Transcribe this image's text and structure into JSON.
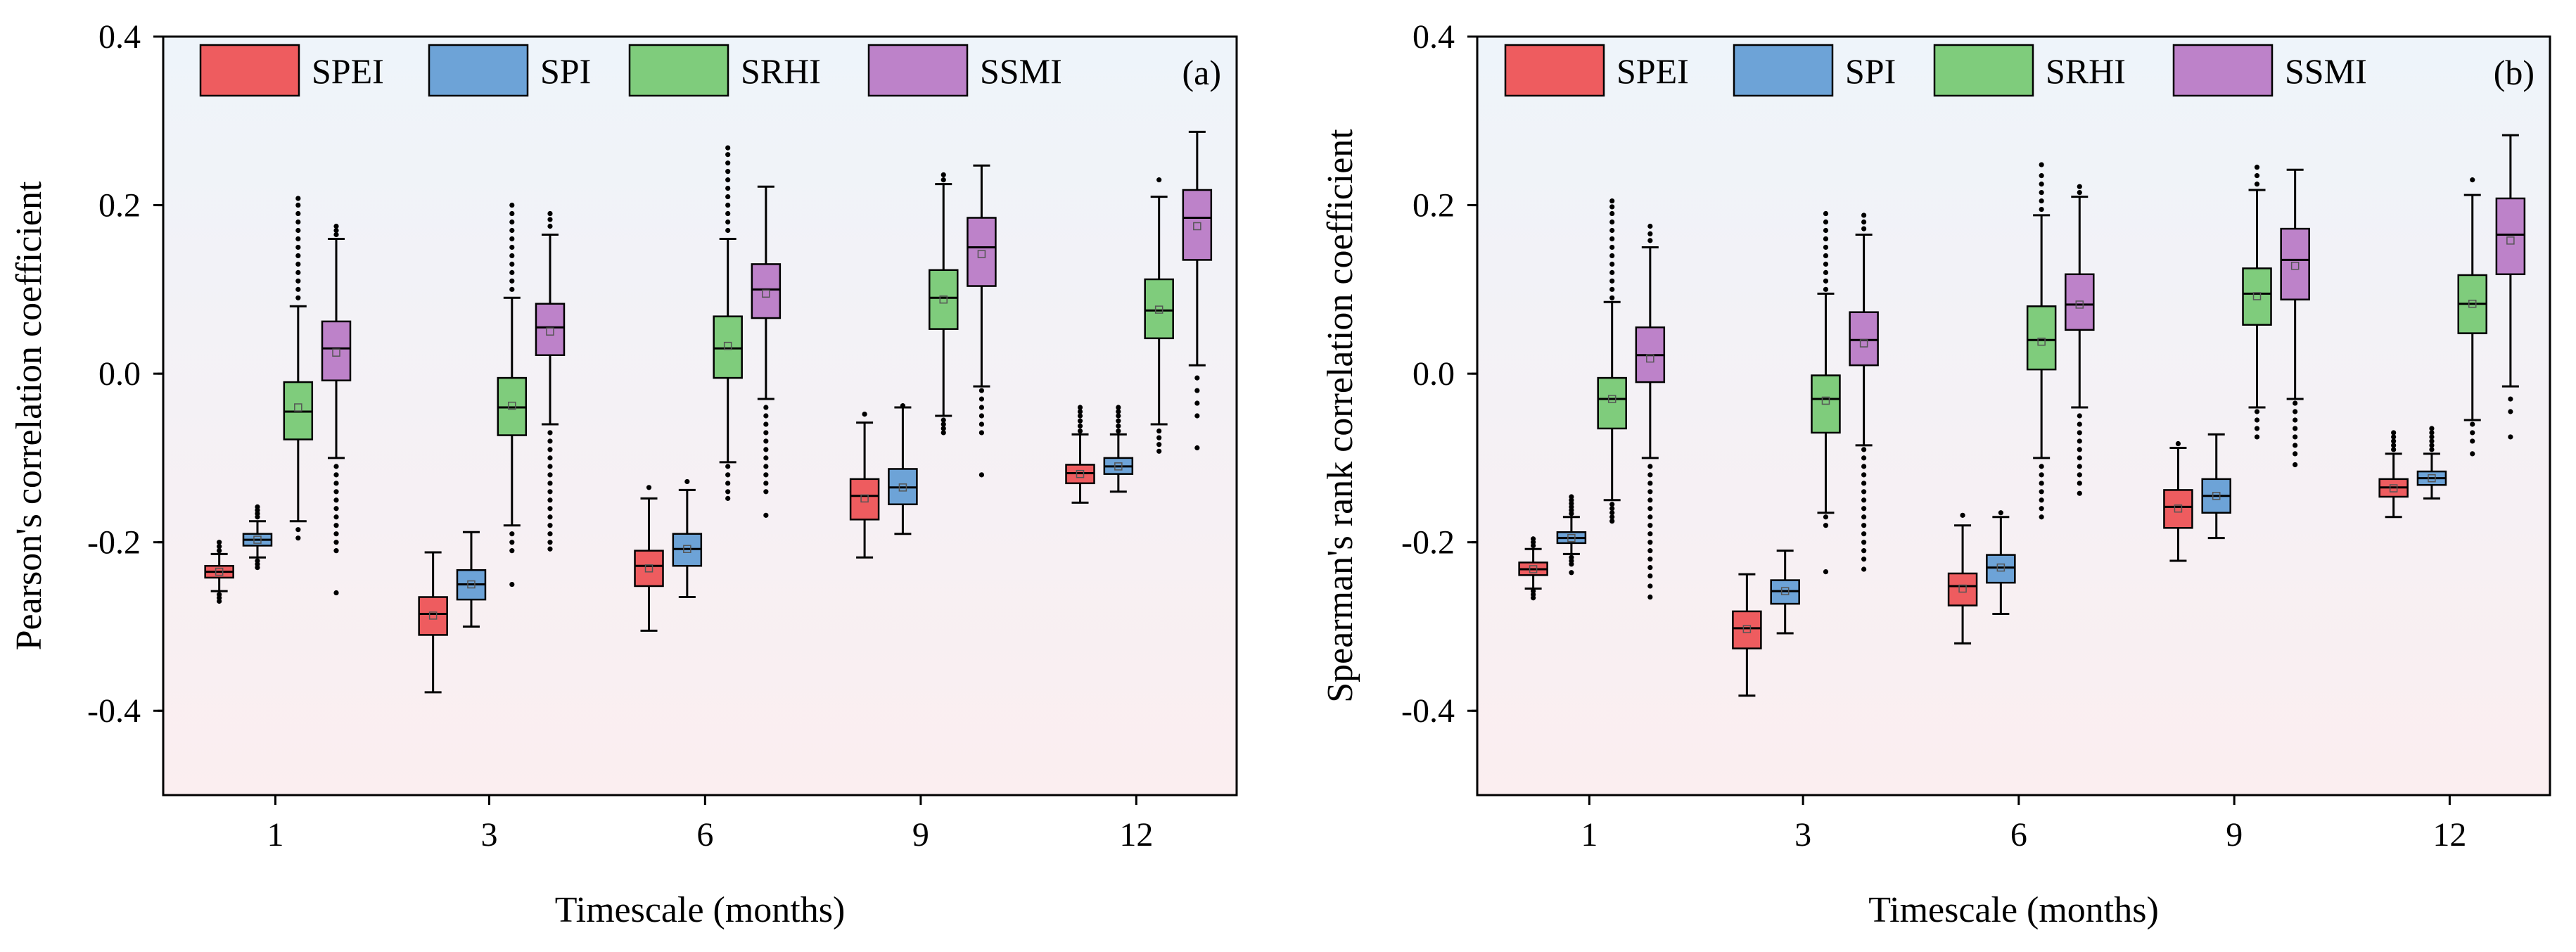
{
  "colors": {
    "SPEI": "#ee5c5f",
    "SPI": "#6da3d7",
    "SRHI": "#7fcc7c",
    "SSMI": "#bd82c9",
    "bg_top": "#eef4fa",
    "bg_bottom": "#fbeef0"
  },
  "chart_data": [
    {
      "type": "box",
      "panel_label": "(a)",
      "title": "",
      "xlabel": "Timescale (months)",
      "ylabel": "Pearson's correlation coefficient",
      "ylim": [
        -0.5,
        0.4
      ],
      "yticks": [
        "0.4",
        "0.2",
        "0.0",
        "-0.2",
        "-0.4"
      ],
      "ytick_values": [
        0.4,
        0.2,
        0.0,
        -0.2,
        -0.4
      ],
      "categories": [
        "1",
        "3",
        "6",
        "9",
        "12"
      ],
      "legend": [
        "SPEI",
        "SPI",
        "SRHI",
        "SSMI"
      ],
      "legend_position": "top",
      "series": [
        {
          "name": "SPEI",
          "boxes": [
            {
              "wlo": -0.258,
              "q1": -0.242,
              "median": -0.235,
              "q3": -0.228,
              "whi": -0.214,
              "mean": -0.235,
              "out_lo": [
                -0.262,
                -0.266,
                -0.27
              ],
              "out_hi": [
                -0.21,
                -0.205,
                -0.2
              ]
            },
            {
              "wlo": -0.378,
              "q1": -0.31,
              "median": -0.285,
              "q3": -0.265,
              "whi": -0.212,
              "mean": -0.287,
              "out_lo": [],
              "out_hi": []
            },
            {
              "wlo": -0.305,
              "q1": -0.252,
              "median": -0.228,
              "q3": -0.21,
              "whi": -0.148,
              "mean": -0.231,
              "out_lo": [],
              "out_hi": [
                -0.135
              ]
            },
            {
              "wlo": -0.218,
              "q1": -0.173,
              "median": -0.145,
              "q3": -0.125,
              "whi": -0.058,
              "mean": -0.148,
              "out_lo": [],
              "out_hi": [
                -0.048
              ]
            },
            {
              "wlo": -0.153,
              "q1": -0.13,
              "median": -0.118,
              "q3": -0.108,
              "whi": -0.072,
              "mean": -0.119,
              "out_lo": [],
              "out_hi": [
                -0.068,
                -0.062,
                -0.056,
                -0.05,
                -0.045,
                -0.04
              ]
            }
          ]
        },
        {
          "name": "SPI",
          "boxes": [
            {
              "wlo": -0.218,
              "q1": -0.204,
              "median": -0.197,
              "q3": -0.19,
              "whi": -0.175,
              "mean": -0.197,
              "out_lo": [
                -0.222,
                -0.226,
                -0.23
              ],
              "out_hi": [
                -0.17,
                -0.166,
                -0.162,
                -0.158
              ]
            },
            {
              "wlo": -0.3,
              "q1": -0.268,
              "median": -0.25,
              "q3": -0.233,
              "whi": -0.188,
              "mean": -0.25,
              "out_lo": [],
              "out_hi": []
            },
            {
              "wlo": -0.265,
              "q1": -0.228,
              "median": -0.208,
              "q3": -0.19,
              "whi": -0.138,
              "mean": -0.208,
              "out_lo": [],
              "out_hi": [
                -0.128
              ]
            },
            {
              "wlo": -0.19,
              "q1": -0.155,
              "median": -0.135,
              "q3": -0.113,
              "whi": -0.04,
              "mean": -0.135,
              "out_lo": [],
              "out_hi": [
                -0.038
              ]
            },
            {
              "wlo": -0.14,
              "q1": -0.119,
              "median": -0.11,
              "q3": -0.1,
              "whi": -0.072,
              "mean": -0.11,
              "out_lo": [],
              "out_hi": [
                -0.068,
                -0.062,
                -0.056,
                -0.05,
                -0.045,
                -0.04
              ]
            }
          ]
        },
        {
          "name": "SRHI",
          "boxes": [
            {
              "wlo": -0.175,
              "q1": -0.078,
              "median": -0.045,
              "q3": -0.01,
              "whi": 0.08,
              "mean": -0.04,
              "out_lo": [
                -0.185,
                -0.195
              ],
              "out_hi": [
                0.09,
                0.1,
                0.11,
                0.12,
                0.13,
                0.14,
                0.15,
                0.16,
                0.17,
                0.18,
                0.19,
                0.2,
                0.208
              ]
            },
            {
              "wlo": -0.18,
              "q1": -0.073,
              "median": -0.04,
              "q3": -0.005,
              "whi": 0.09,
              "mean": -0.038,
              "out_lo": [
                -0.19,
                -0.2,
                -0.21,
                -0.25
              ],
              "out_hi": [
                0.1,
                0.11,
                0.12,
                0.13,
                0.14,
                0.15,
                0.16,
                0.17,
                0.18,
                0.19,
                0.2
              ]
            },
            {
              "wlo": -0.105,
              "q1": -0.005,
              "median": 0.03,
              "q3": 0.068,
              "whi": 0.16,
              "mean": 0.033,
              "out_lo": [
                -0.11,
                -0.12,
                -0.13,
                -0.14,
                -0.148
              ],
              "out_hi": [
                0.17,
                0.18,
                0.19,
                0.2,
                0.21,
                0.22,
                0.23,
                0.24,
                0.25,
                0.26,
                0.268
              ]
            },
            {
              "wlo": -0.05,
              "q1": 0.053,
              "median": 0.09,
              "q3": 0.123,
              "whi": 0.225,
              "mean": 0.088,
              "out_lo": [
                -0.055,
                -0.06,
                -0.065,
                -0.07
              ],
              "out_hi": [
                0.23,
                0.236
              ]
            },
            {
              "wlo": -0.06,
              "q1": 0.042,
              "median": 0.075,
              "q3": 0.112,
              "whi": 0.21,
              "mean": 0.076,
              "out_lo": [
                -0.068,
                -0.076,
                -0.084,
                -0.092
              ],
              "out_hi": [
                0.23
              ]
            }
          ]
        },
        {
          "name": "SSMI",
          "boxes": [
            {
              "wlo": -0.1,
              "q1": -0.008,
              "median": 0.03,
              "q3": 0.062,
              "whi": 0.16,
              "mean": 0.025,
              "out_lo": [
                -0.11,
                -0.12,
                -0.13,
                -0.14,
                -0.15,
                -0.16,
                -0.17,
                -0.18,
                -0.19,
                -0.2,
                -0.21,
                -0.26
              ],
              "out_hi": [
                0.165,
                0.17,
                0.175
              ]
            },
            {
              "wlo": -0.06,
              "q1": 0.022,
              "median": 0.055,
              "q3": 0.083,
              "whi": 0.165,
              "mean": 0.05,
              "out_lo": [
                -0.07,
                -0.08,
                -0.09,
                -0.1,
                -0.11,
                -0.12,
                -0.13,
                -0.14,
                -0.15,
                -0.16,
                -0.17,
                -0.18,
                -0.19,
                -0.2,
                -0.208
              ],
              "out_hi": [
                0.175,
                0.183,
                0.19
              ]
            },
            {
              "wlo": -0.03,
              "q1": 0.066,
              "median": 0.1,
              "q3": 0.13,
              "whi": 0.222,
              "mean": 0.095,
              "out_lo": [
                -0.04,
                -0.05,
                -0.06,
                -0.07,
                -0.08,
                -0.09,
                -0.1,
                -0.11,
                -0.12,
                -0.13,
                -0.14,
                -0.168
              ],
              "out_hi": []
            },
            {
              "wlo": -0.015,
              "q1": 0.104,
              "median": 0.15,
              "q3": 0.185,
              "whi": 0.247,
              "mean": 0.142,
              "out_lo": [
                -0.02,
                -0.03,
                -0.04,
                -0.05,
                -0.06,
                -0.07,
                -0.12
              ],
              "out_hi": []
            },
            {
              "wlo": 0.01,
              "q1": 0.135,
              "median": 0.185,
              "q3": 0.218,
              "whi": 0.287,
              "mean": 0.175,
              "out_lo": [
                -0.005,
                -0.02,
                -0.035,
                -0.05,
                -0.088
              ],
              "out_hi": []
            }
          ]
        }
      ]
    },
    {
      "type": "box",
      "panel_label": "(b)",
      "title": "",
      "xlabel": "Timescale (months)",
      "ylabel": "Spearman's rank correlation coefficient",
      "ylim": [
        -0.5,
        0.4
      ],
      "yticks": [
        "0.4",
        "0.2",
        "0.0",
        "-0.2",
        "-0.4"
      ],
      "ytick_values": [
        0.4,
        0.2,
        0.0,
        -0.2,
        -0.4
      ],
      "categories": [
        "1",
        "3",
        "6",
        "9",
        "12"
      ],
      "legend": [
        "SPEI",
        "SPI",
        "SRHI",
        "SSMI"
      ],
      "legend_position": "top",
      "series": [
        {
          "name": "SPEI",
          "boxes": [
            {
              "wlo": -0.255,
              "q1": -0.239,
              "median": -0.232,
              "q3": -0.224,
              "whi": -0.208,
              "mean": -0.232,
              "out_lo": [
                -0.258,
                -0.262,
                -0.266
              ],
              "out_hi": [
                -0.204,
                -0.2,
                -0.196
              ]
            },
            {
              "wlo": -0.382,
              "q1": -0.326,
              "median": -0.302,
              "q3": -0.282,
              "whi": -0.238,
              "mean": -0.303,
              "out_lo": [],
              "out_hi": []
            },
            {
              "wlo": -0.32,
              "q1": -0.275,
              "median": -0.252,
              "q3": -0.237,
              "whi": -0.18,
              "mean": -0.255,
              "out_lo": [],
              "out_hi": [
                -0.168
              ]
            },
            {
              "wlo": -0.222,
              "q1": -0.183,
              "median": -0.158,
              "q3": -0.138,
              "whi": -0.088,
              "mean": -0.16,
              "out_lo": [],
              "out_hi": [
                -0.083
              ]
            },
            {
              "wlo": -0.17,
              "q1": -0.146,
              "median": -0.135,
              "q3": -0.125,
              "whi": -0.095,
              "mean": -0.136,
              "out_lo": [],
              "out_hi": [
                -0.09,
                -0.085,
                -0.08,
                -0.075,
                -0.07
              ]
            }
          ]
        },
        {
          "name": "SPI",
          "boxes": [
            {
              "wlo": -0.214,
              "q1": -0.201,
              "median": -0.195,
              "q3": -0.188,
              "whi": -0.17,
              "mean": -0.195,
              "out_lo": [
                -0.218,
                -0.222,
                -0.226,
                -0.236
              ],
              "out_hi": [
                -0.166,
                -0.162,
                -0.158,
                -0.154,
                -0.15,
                -0.146
              ]
            },
            {
              "wlo": -0.308,
              "q1": -0.273,
              "median": -0.258,
              "q3": -0.245,
              "whi": -0.21,
              "mean": -0.258,
              "out_lo": [],
              "out_hi": []
            },
            {
              "wlo": -0.285,
              "q1": -0.248,
              "median": -0.23,
              "q3": -0.215,
              "whi": -0.17,
              "mean": -0.23,
              "out_lo": [],
              "out_hi": [
                -0.165
              ]
            },
            {
              "wlo": -0.195,
              "q1": -0.165,
              "median": -0.145,
              "q3": -0.125,
              "whi": -0.072,
              "mean": -0.145,
              "out_lo": [],
              "out_hi": []
            },
            {
              "wlo": -0.148,
              "q1": -0.132,
              "median": -0.124,
              "q3": -0.116,
              "whi": -0.095,
              "mean": -0.124,
              "out_lo": [],
              "out_hi": [
                -0.09,
                -0.085,
                -0.08,
                -0.075,
                -0.07,
                -0.065
              ]
            }
          ]
        },
        {
          "name": "SRHI",
          "boxes": [
            {
              "wlo": -0.15,
              "q1": -0.065,
              "median": -0.03,
              "q3": -0.005,
              "whi": 0.085,
              "mean": -0.03,
              "out_lo": [
                -0.155,
                -0.16,
                -0.165,
                -0.17,
                -0.175
              ],
              "out_hi": [
                0.09,
                0.1,
                0.11,
                0.12,
                0.13,
                0.14,
                0.15,
                0.16,
                0.17,
                0.18,
                0.19,
                0.198,
                0.205
              ]
            },
            {
              "wlo": -0.165,
              "q1": -0.07,
              "median": -0.03,
              "q3": -0.002,
              "whi": 0.095,
              "mean": -0.032,
              "out_lo": [
                -0.17,
                -0.18,
                -0.235
              ],
              "out_hi": [
                0.1,
                0.11,
                0.12,
                0.13,
                0.14,
                0.15,
                0.16,
                0.17,
                0.18,
                0.19
              ]
            },
            {
              "wlo": -0.1,
              "q1": 0.005,
              "median": 0.04,
              "q3": 0.08,
              "whi": 0.188,
              "mean": 0.038,
              "out_lo": [
                -0.11,
                -0.12,
                -0.13,
                -0.14,
                -0.15,
                -0.16,
                -0.17
              ],
              "out_hi": [
                0.195,
                0.205,
                0.215,
                0.225,
                0.235,
                0.248
              ]
            },
            {
              "wlo": -0.04,
              "q1": 0.058,
              "median": 0.095,
              "q3": 0.125,
              "whi": 0.218,
              "mean": 0.092,
              "out_lo": [
                -0.045,
                -0.055,
                -0.065,
                -0.075
              ],
              "out_hi": [
                0.225,
                0.235,
                0.245
              ]
            },
            {
              "wlo": -0.055,
              "q1": 0.048,
              "median": 0.083,
              "q3": 0.117,
              "whi": 0.212,
              "mean": 0.083,
              "out_lo": [
                -0.06,
                -0.07,
                -0.08,
                -0.095
              ],
              "out_hi": [
                0.23
              ]
            }
          ]
        },
        {
          "name": "SSMI",
          "boxes": [
            {
              "wlo": -0.1,
              "q1": -0.01,
              "median": 0.022,
              "q3": 0.055,
              "whi": 0.15,
              "mean": 0.018,
              "out_lo": [
                -0.11,
                -0.12,
                -0.13,
                -0.14,
                -0.15,
                -0.16,
                -0.17,
                -0.18,
                -0.19,
                -0.2,
                -0.21,
                -0.22,
                -0.23,
                -0.24,
                -0.252,
                -0.265
              ],
              "out_hi": [
                0.158,
                0.166,
                0.175
              ]
            },
            {
              "wlo": -0.085,
              "q1": 0.01,
              "median": 0.04,
              "q3": 0.073,
              "whi": 0.165,
              "mean": 0.036,
              "out_lo": [
                -0.09,
                -0.1,
                -0.11,
                -0.12,
                -0.13,
                -0.14,
                -0.15,
                -0.16,
                -0.17,
                -0.18,
                -0.19,
                -0.2,
                -0.21,
                -0.22,
                -0.232
              ],
              "out_hi": [
                0.172,
                0.18,
                0.188
              ]
            },
            {
              "wlo": -0.04,
              "q1": 0.052,
              "median": 0.082,
              "q3": 0.118,
              "whi": 0.21,
              "mean": 0.082,
              "out_lo": [
                -0.05,
                -0.06,
                -0.07,
                -0.08,
                -0.09,
                -0.1,
                -0.11,
                -0.12,
                -0.13,
                -0.142
              ],
              "out_hi": [
                0.215,
                0.222
              ]
            },
            {
              "wlo": -0.03,
              "q1": 0.088,
              "median": 0.135,
              "q3": 0.172,
              "whi": 0.242,
              "mean": 0.128,
              "out_lo": [
                -0.035,
                -0.045,
                -0.055,
                -0.065,
                -0.075,
                -0.085,
                -0.095,
                -0.108
              ],
              "out_hi": []
            },
            {
              "wlo": -0.015,
              "q1": 0.118,
              "median": 0.165,
              "q3": 0.208,
              "whi": 0.283,
              "mean": 0.158,
              "out_lo": [
                -0.03,
                -0.045,
                -0.075
              ],
              "out_hi": []
            }
          ]
        }
      ]
    }
  ]
}
